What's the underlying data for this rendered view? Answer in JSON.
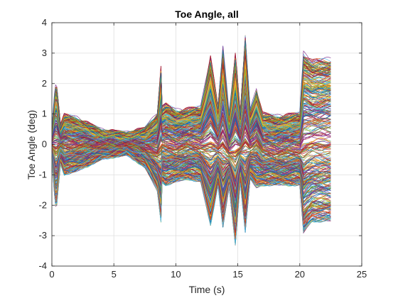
{
  "chart_data": {
    "type": "line",
    "title": "Toe Angle, all",
    "xlabel": "Time (s)",
    "ylabel": "Toe Angle (deg)",
    "xlim": [
      0,
      25
    ],
    "ylim": [
      -4,
      4
    ],
    "xticks": [
      0,
      5,
      10,
      15,
      20,
      25
    ],
    "yticks": [
      -4,
      -3,
      -2,
      -1,
      0,
      1,
      2,
      3,
      4
    ],
    "grid": true,
    "box": true,
    "x_end": 22.5,
    "series_count": 400,
    "envelope": {
      "x": [
        0,
        0.2,
        0.35,
        0.5,
        0.7,
        1.0,
        2.0,
        4.0,
        6.0,
        7.5,
        8.5,
        8.85,
        8.9,
        9.2,
        10.0,
        11.0,
        12.0,
        12.8,
        13.4,
        13.8,
        14.3,
        14.8,
        15.2,
        15.6,
        16.0,
        16.5,
        17.0,
        18.0,
        20.0,
        20.3,
        20.6,
        21.0,
        22.5
      ],
      "upper": [
        0.5,
        1.6,
        2.1,
        1.5,
        0.6,
        0.95,
        0.85,
        0.45,
        0.35,
        0.5,
        1.0,
        2.8,
        1.2,
        1.3,
        1.1,
        1.15,
        1.2,
        2.9,
        1.2,
        3.2,
        1.0,
        3.0,
        1.0,
        3.55,
        1.1,
        1.8,
        1.0,
        0.9,
        1.0,
        3.0,
        2.9,
        2.75,
        2.8
      ],
      "lower": [
        -0.5,
        -1.6,
        -2.2,
        -1.5,
        -0.6,
        -0.95,
        -0.85,
        -0.45,
        -0.3,
        -0.7,
        -1.5,
        -2.7,
        -1.2,
        -1.3,
        -1.2,
        -1.1,
        -1.2,
        -2.65,
        -1.3,
        -2.7,
        -1.4,
        -3.3,
        -1.2,
        -2.85,
        -1.1,
        -1.4,
        -1.3,
        -1.3,
        -1.3,
        -2.9,
        -2.7,
        -2.5,
        -2.5
      ]
    },
    "palette": [
      "#0072bd",
      "#d95319",
      "#edb120",
      "#7e2f8e",
      "#77ac30",
      "#4dbeee",
      "#a2142f"
    ]
  }
}
